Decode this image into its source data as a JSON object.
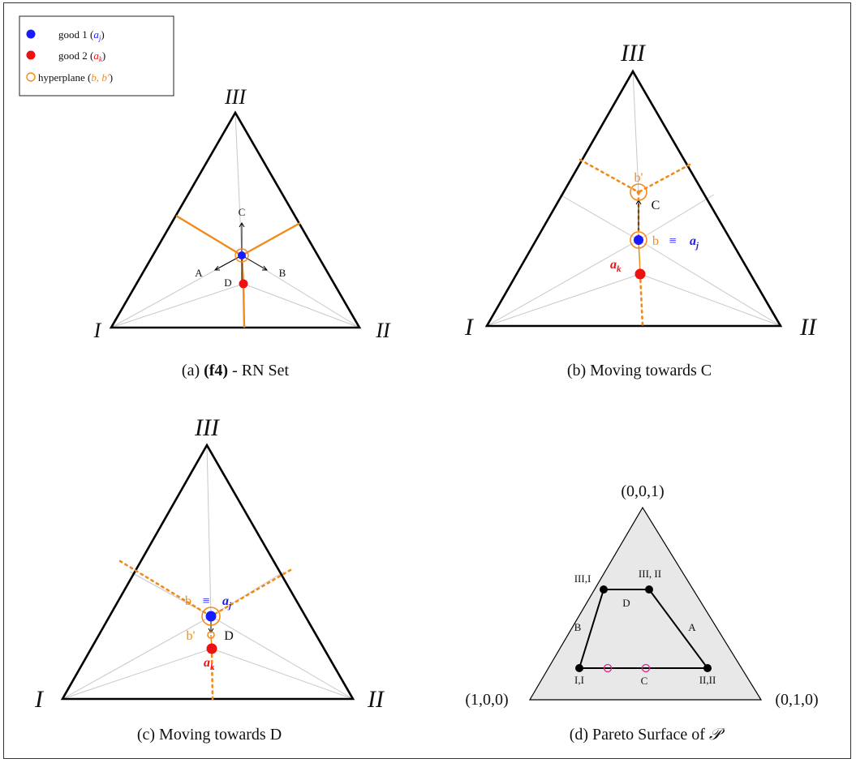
{
  "legend": {
    "items": [
      {
        "label": "good 1 (",
        "sym": "a",
        "sub": "j",
        "close": ")",
        "color": "#1a1aff"
      },
      {
        "label": "good 2 (",
        "sym": "a",
        "sub": "k",
        "close": ")",
        "color": "#ee1111"
      },
      {
        "label": "hyperplane (",
        "sym": "b, b′",
        "sub": "",
        "close": ")",
        "color": "#f28a1a"
      }
    ]
  },
  "panel_a": {
    "caption_prefix": "(a) ",
    "caption_bold": "(f4)",
    "caption_rest": " - RN Set",
    "vertices": [
      "I",
      "II",
      "III"
    ],
    "arrows": {
      "up": "C",
      "left": "A",
      "right": "B",
      "down": "D"
    }
  },
  "panel_b": {
    "caption": "(b) Moving towards C",
    "vertices": [
      "I",
      "II",
      "III"
    ],
    "labels": {
      "bprime": "b'",
      "c": "C",
      "b": "b",
      "equiv": "≡",
      "aj": "a",
      "aj_sub": "j",
      "ak": "a",
      "ak_sub": "k"
    }
  },
  "panel_c": {
    "caption": "(c) Moving towards D",
    "vertices": [
      "I",
      "II",
      "III"
    ],
    "labels": {
      "b": "b",
      "equiv": "≡",
      "aj": "a",
      "aj_sub": "j",
      "bprime": "b'",
      "d": "D",
      "ak": "a",
      "ak_sub": "k"
    }
  },
  "panel_d": {
    "caption_prefix": "(d) Pareto Surface of ",
    "caption_sym": "𝒫",
    "corners": {
      "top": "(0,0,1)",
      "left": "(1,0,0)",
      "right": "(0,1,0)"
    },
    "points": [
      "III,I",
      "III, II",
      "I,I",
      "II,II"
    ],
    "edges": {
      "top": "D",
      "left": "B",
      "right": "A",
      "bottom": "C"
    }
  },
  "colors": {
    "blue": "#1a1aff",
    "red": "#ee1111",
    "orange": "#f28a1a",
    "grey": "#c8c8c8",
    "fill": "#e8e8e8",
    "magenta": "#e0208a"
  }
}
